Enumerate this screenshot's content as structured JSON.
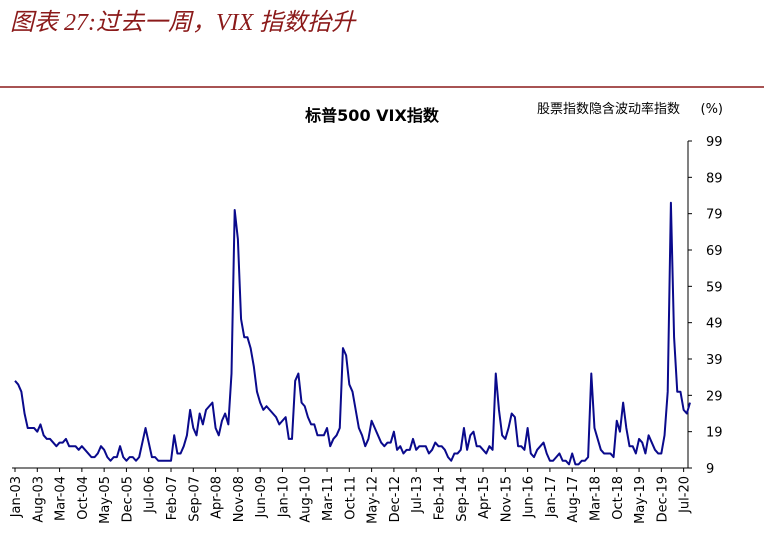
{
  "header": {
    "title": "图表 27:过去一周，VIX 指数抬升"
  },
  "chart_data": {
    "type": "line",
    "title": "标普500 VIX指数",
    "legend_label": "股票指数隐含波动率指数",
    "y_unit": "(%)",
    "categories": [
      "Jan-03",
      null,
      null,
      null,
      null,
      null,
      null,
      "Aug-03",
      null,
      null,
      null,
      null,
      null,
      null,
      "Mar-04",
      null,
      null,
      null,
      null,
      null,
      null,
      "Oct-04",
      null,
      null,
      null,
      null,
      null,
      null,
      "May-05",
      null,
      null,
      null,
      null,
      null,
      null,
      "Dec-05",
      null,
      null,
      null,
      null,
      null,
      null,
      "Jul-06",
      null,
      null,
      null,
      null,
      null,
      null,
      "Feb-07",
      null,
      null,
      null,
      null,
      null,
      null,
      "Sep-07",
      null,
      null,
      null,
      null,
      null,
      null,
      "Apr-08",
      null,
      null,
      null,
      null,
      null,
      null,
      "Nov-08",
      null,
      null,
      null,
      null,
      null,
      null,
      "Jun-09",
      null,
      null,
      null,
      null,
      null,
      null,
      "Jan-10",
      null,
      null,
      null,
      null,
      null,
      null,
      "Aug-10",
      null,
      null,
      null,
      null,
      null,
      null,
      "Mar-11",
      null,
      null,
      null,
      null,
      null,
      null,
      "Oct-11",
      null,
      null,
      null,
      null,
      null,
      null,
      "May-12",
      null,
      null,
      null,
      null,
      null,
      null,
      "Dec-12",
      null,
      null,
      null,
      null,
      null,
      null,
      "Jul-13",
      null,
      null,
      null,
      null,
      null,
      null,
      "Feb-14",
      null,
      null,
      null,
      null,
      null,
      null,
      "Sep-14",
      null,
      null,
      null,
      null,
      null,
      null,
      "Apr-15",
      null,
      null,
      null,
      null,
      null,
      null,
      "Nov-15",
      null,
      null,
      null,
      null,
      null,
      null,
      "Jun-16",
      null,
      null,
      null,
      null,
      null,
      null,
      "Jan-17",
      null,
      null,
      null,
      null,
      null,
      null,
      "Aug-17",
      null,
      null,
      null,
      null,
      null,
      null,
      "Mar-18",
      null,
      null,
      null,
      null,
      null,
      null,
      "Oct-18",
      null,
      null,
      null,
      null,
      null,
      null,
      "May-19",
      null,
      null,
      null,
      null,
      null,
      null,
      "Dec-19",
      null,
      null,
      null,
      null,
      null,
      null,
      "Jul-20",
      null,
      null
    ],
    "series": [
      {
        "name": "标普500 VIX指数",
        "color": "#0a0a8c",
        "values": [
          33,
          32,
          30,
          24,
          20,
          20,
          20,
          19,
          21,
          18,
          17,
          17,
          16,
          15,
          16,
          16,
          17,
          15,
          15,
          15,
          14,
          15,
          14,
          13,
          12,
          12,
          13,
          15,
          14,
          12,
          11,
          12,
          12,
          15,
          12,
          11,
          12,
          12,
          11,
          12,
          16,
          20,
          16,
          12,
          12,
          11,
          11,
          11,
          11,
          11,
          18,
          13,
          13,
          15,
          18,
          25,
          20,
          18,
          24,
          21,
          25,
          26,
          27,
          20,
          18,
          22,
          24,
          21,
          35,
          80,
          72,
          50,
          45,
          45,
          42,
          37,
          30,
          27,
          25,
          26,
          25,
          24,
          23,
          21,
          22,
          23,
          17,
          17,
          33,
          35,
          27,
          26,
          23,
          21,
          21,
          18,
          18,
          18,
          20,
          15,
          17,
          18,
          20,
          42,
          40,
          32,
          30,
          25,
          20,
          18,
          15,
          17,
          22,
          20,
          18,
          16,
          15,
          16,
          16,
          19,
          14,
          15,
          13,
          14,
          14,
          17,
          14,
          15,
          15,
          15,
          13,
          14,
          16,
          15,
          15,
          14,
          12,
          11,
          13,
          13,
          14,
          20,
          14,
          18,
          19,
          15,
          15,
          14,
          13,
          15,
          14,
          35,
          25,
          18,
          17,
          20,
          24,
          23,
          15,
          15,
          14,
          20,
          13,
          12,
          14,
          15,
          16,
          13,
          11,
          11,
          12,
          13,
          11,
          11,
          10,
          13,
          10,
          10,
          11,
          11,
          12,
          35,
          20,
          17,
          14,
          13,
          13,
          13,
          12,
          22,
          19,
          27,
          20,
          15,
          15,
          13,
          17,
          16,
          13,
          18,
          16,
          14,
          13,
          13,
          18,
          30,
          82,
          45,
          30,
          30,
          25,
          24,
          27
        ]
      }
    ],
    "ylim": [
      9,
      99
    ],
    "yticks": [
      9,
      19,
      29,
      39,
      49,
      59,
      69,
      79,
      89,
      99
    ]
  }
}
